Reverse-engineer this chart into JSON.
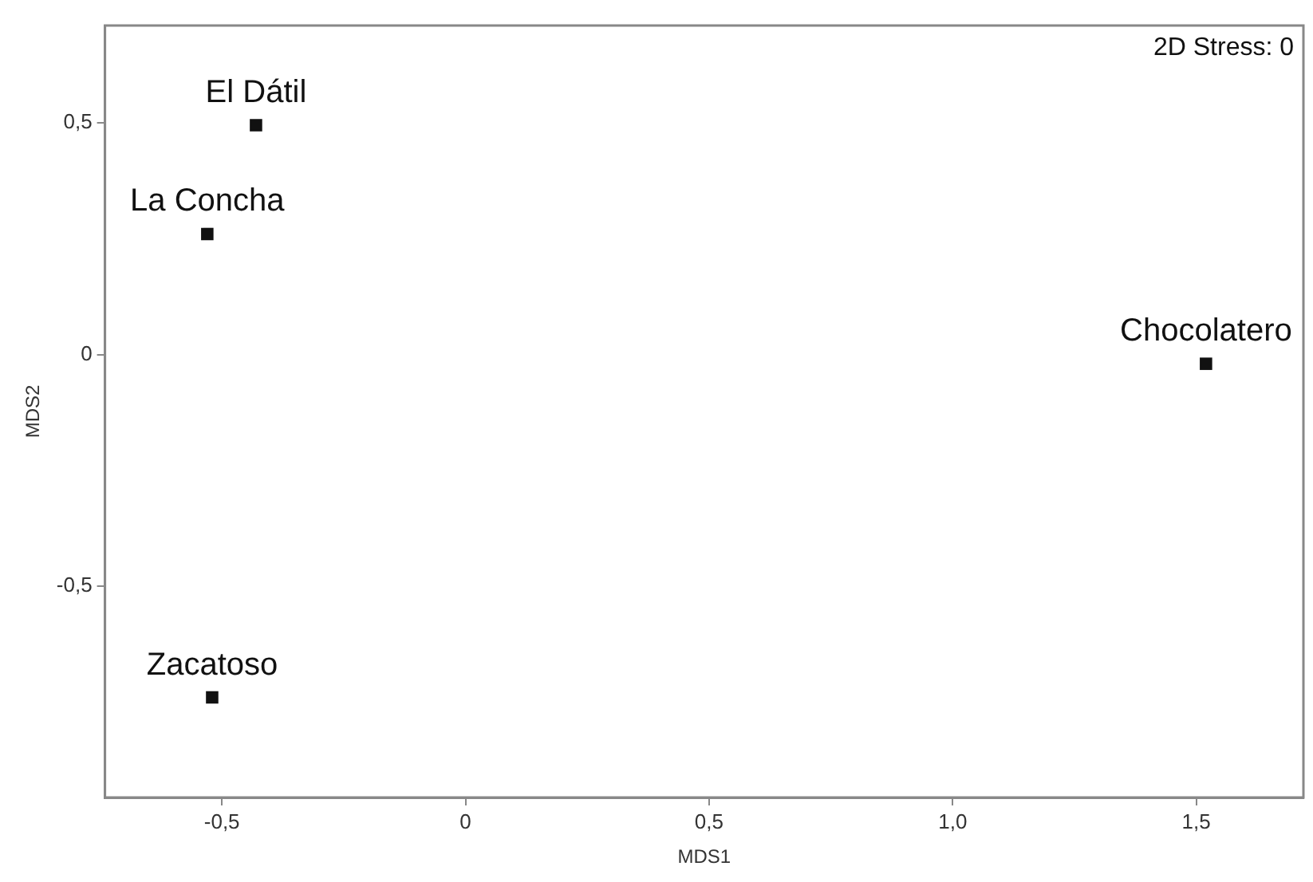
{
  "chart_data": {
    "type": "scatter",
    "xlabel": "MDS1",
    "ylabel": "MDS2",
    "x": [
      -0.43,
      -0.53,
      1.52,
      -0.52
    ],
    "series": [
      {
        "color": "#111111",
        "values": [
          0.495,
          0.26,
          -0.02,
          -0.74
        ]
      }
    ],
    "xlim": [
      -0.74,
      1.72
    ],
    "ylim": [
      -0.956,
      0.71
    ],
    "xticks": [
      {
        "value": -0.5,
        "label": "-0,5"
      },
      0,
      {
        "value": 0.5,
        "label": "0,5"
      },
      {
        "value": 1,
        "label": "1,0"
      },
      {
        "value": 1.5,
        "label": "1,5"
      }
    ],
    "yticks": [
      {
        "value": -0.5,
        "label": "-0,5"
      },
      0,
      {
        "value": 0.5,
        "label": "0,5"
      }
    ],
    "grid": false,
    "legend": false,
    "marker": "square",
    "annotations": [
      {
        "text": "El Dátil",
        "x": -0.43,
        "y": 0.495
      },
      {
        "text": "La Concha",
        "x": -0.53,
        "y": 0.26
      },
      {
        "text": "Chocolatero",
        "x": 1.52,
        "y": -0.02
      },
      {
        "text": "Zacatoso",
        "x": -0.52,
        "y": -0.74
      },
      "2D Stress: 0"
    ]
  }
}
